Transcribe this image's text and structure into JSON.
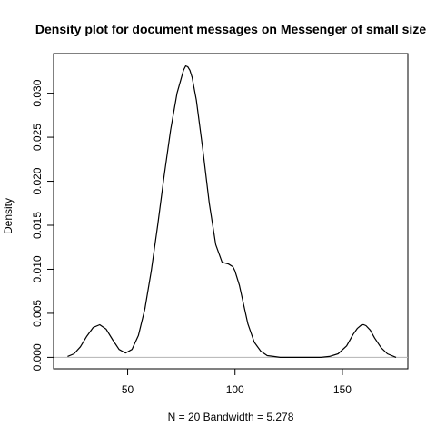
{
  "chart_data": {
    "type": "line",
    "title": "Density plot for document messages on Messenger of small size",
    "xlabel": "N = 20   Bandwidth = 5.278",
    "ylabel": "Density",
    "xlim": [
      15.5,
      180.5
    ],
    "ylim": [
      -0.0013,
      0.0345
    ],
    "x_ticks": [
      50,
      100,
      150
    ],
    "x_tick_labels": [
      "50",
      "100",
      "150"
    ],
    "y_ticks": [
      0,
      0.005,
      0.01,
      0.015,
      0.02,
      0.025,
      0.03
    ],
    "y_tick_labels": [
      "0.000",
      "0.005",
      "0.010",
      "0.015",
      "0.020",
      "0.025",
      "0.030"
    ],
    "grid": false,
    "baseline": 0,
    "series": [
      {
        "x": [
          22,
          25,
          28,
          31,
          34,
          37,
          40,
          43,
          46,
          49,
          52,
          55,
          58,
          61,
          64,
          67,
          70,
          73,
          76,
          77,
          78,
          79,
          80,
          82,
          85,
          88,
          91,
          94,
          97,
          99,
          100,
          102,
          104,
          106,
          109,
          112,
          115,
          118,
          121,
          124,
          130,
          140,
          144,
          148,
          152,
          155,
          157,
          159,
          160,
          161,
          163,
          165,
          168,
          171,
          174,
          175
        ],
        "y": [
          0.0001,
          0.0004,
          0.0012,
          0.0024,
          0.0034,
          0.0037,
          0.0032,
          0.002,
          0.0009,
          0.0005,
          0.0009,
          0.0025,
          0.0055,
          0.0098,
          0.015,
          0.0206,
          0.0258,
          0.03,
          0.0326,
          0.0331,
          0.033,
          0.0326,
          0.0318,
          0.0292,
          0.0236,
          0.0175,
          0.0128,
          0.0108,
          0.0106,
          0.0103,
          0.0098,
          0.0082,
          0.006,
          0.0038,
          0.0017,
          0.0007,
          0.0002,
          0.0001,
          0.0,
          0.0,
          0.0,
          0.0,
          0.0001,
          0.0004,
          0.0013,
          0.0026,
          0.0033,
          0.0037,
          0.0037,
          0.0036,
          0.0031,
          0.0022,
          0.0011,
          0.0004,
          0.0001,
          0.0
        ]
      }
    ]
  }
}
